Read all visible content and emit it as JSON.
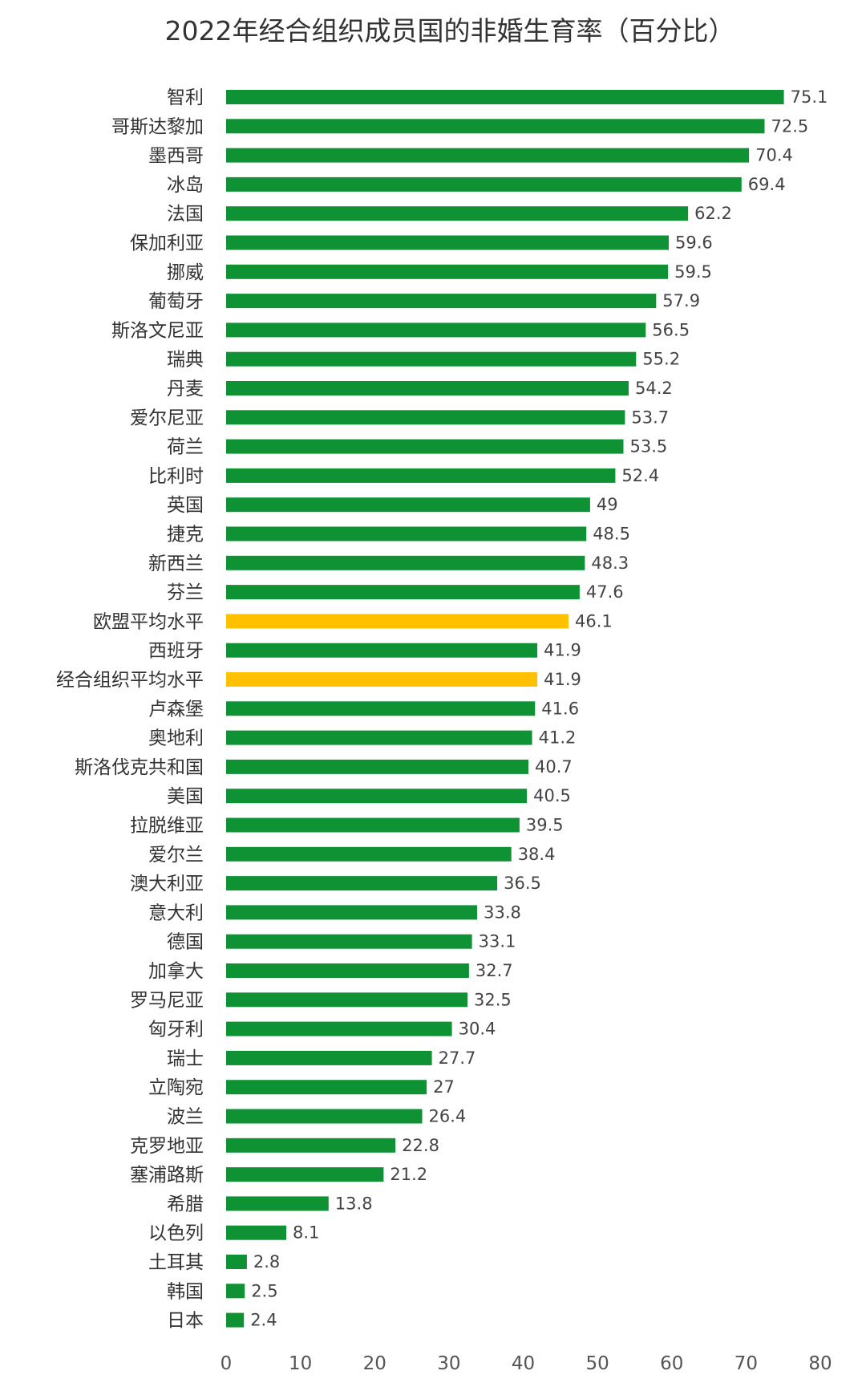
{
  "chart_data": {
    "type": "bar",
    "orientation": "horizontal",
    "title": "2022年经合组织成员国的非婚生育率（百分比）",
    "xlabel": "",
    "ylabel": "",
    "xlim": [
      0,
      80
    ],
    "x_ticks": [
      "0",
      "10",
      "20",
      "30",
      "40",
      "50",
      "60",
      "70",
      "80"
    ],
    "grid": false,
    "legend": "none",
    "colors": {
      "country": "#0e9234",
      "average": "#ffc000"
    },
    "categories": [
      "智利",
      "哥斯达黎加",
      "墨西哥",
      "冰岛",
      "法国",
      "保加利亚",
      "挪威",
      "葡萄牙",
      "斯洛文尼亚",
      "瑞典",
      "丹麦",
      "爱尔尼亚",
      "荷兰",
      "比利时",
      "英国",
      "捷克",
      "新西兰",
      "芬兰",
      "欧盟平均水平",
      "西班牙",
      "经合组织平均水平",
      "卢森堡",
      "奥地利",
      "斯洛伐克共和国",
      "美国",
      "拉脱维亚",
      "爱尔兰",
      "澳大利亚",
      "意大利",
      "德国",
      "加拿大",
      "罗马尼亚",
      "匈牙利",
      "瑞士",
      "立陶宛",
      "波兰",
      "克罗地亚",
      "塞浦路斯",
      "希腊",
      "以色列",
      "土耳其",
      "韩国",
      "日本"
    ],
    "values": [
      75.1,
      72.5,
      70.4,
      69.4,
      62.2,
      59.6,
      59.5,
      57.9,
      56.5,
      55.2,
      54.2,
      53.7,
      53.5,
      52.4,
      49,
      48.5,
      48.3,
      47.6,
      46.1,
      41.9,
      41.9,
      41.6,
      41.2,
      40.7,
      40.5,
      39.5,
      38.4,
      36.5,
      33.8,
      33.1,
      32.7,
      32.5,
      30.4,
      27.7,
      27,
      26.4,
      22.8,
      21.2,
      13.8,
      8.1,
      2.8,
      2.5,
      2.4
    ],
    "value_labels": [
      "75.1",
      "72.5",
      "70.4",
      "69.4",
      "62.2",
      "59.6",
      "59.5",
      "57.9",
      "56.5",
      "55.2",
      "54.2",
      "53.7",
      "53.5",
      "52.4",
      "49",
      "48.5",
      "48.3",
      "47.6",
      "46.1",
      "41.9",
      "41.9",
      "41.6",
      "41.2",
      "40.7",
      "40.5",
      "39.5",
      "38.4",
      "36.5",
      "33.8",
      "33.1",
      "32.7",
      "32.5",
      "30.4",
      "27.7",
      "27",
      "26.4",
      "22.8",
      "21.2",
      "13.8",
      "8.1",
      "2.8",
      "2.5",
      "2.4"
    ],
    "highlighted": [
      "欧盟平均水平",
      "经合组织平均水平"
    ]
  }
}
